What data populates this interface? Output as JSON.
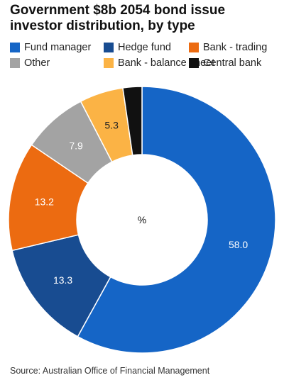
{
  "title": "Government $8b 2054 bond issue investor distribution, by type",
  "source": "Source: Australian Office of Financial Management",
  "chart_data": {
    "type": "pie",
    "donut": true,
    "center_label": "%",
    "slices": [
      {
        "name": "Fund manager",
        "value": 58.0,
        "label": "58.0",
        "color": "#1565c6",
        "label_color": "#ffffff"
      },
      {
        "name": "Hedge fund",
        "value": 13.3,
        "label": "13.3",
        "color": "#184c91",
        "label_color": "#ffffff"
      },
      {
        "name": "Bank - trading",
        "value": 13.2,
        "label": "13.2",
        "color": "#ec6b11",
        "label_color": "#ffffff"
      },
      {
        "name": "Other",
        "value": 7.9,
        "label": "7.9",
        "color": "#a3a3a3",
        "label_color": "#ffffff"
      },
      {
        "name": "Bank - balance sheet",
        "value": 5.3,
        "label": "5.3",
        "color": "#fbb345",
        "label_color": "#222222"
      },
      {
        "name": "Central bank",
        "value": 2.3,
        "label": "",
        "color": "#111111",
        "label_color": "#ffffff"
      }
    ],
    "legend_placement": "top"
  }
}
